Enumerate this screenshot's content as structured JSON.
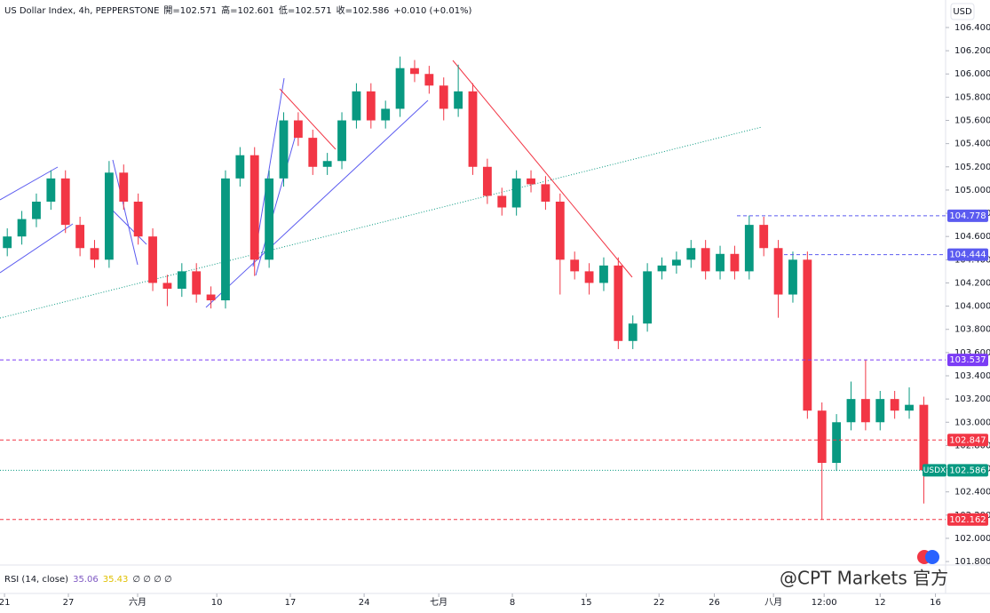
{
  "chart_data": {
    "type": "candlestick",
    "title": "US Dollar Index, 4h, PEPPERSTONE",
    "quote": [
      "開=102.571",
      "高=102.601",
      "低=102.571",
      "收=102.586",
      "+0.010 (+0.01%)"
    ],
    "currency": "USD",
    "up_color": "#089981",
    "down_color": "#f23645",
    "open": [
      104.5,
      104.6,
      104.75,
      104.9,
      105.1,
      104.7,
      104.5,
      104.4,
      105.15,
      104.9,
      104.6,
      104.2,
      104.15,
      104.3,
      104.1,
      104.05,
      105.1,
      105.3,
      104.4,
      105.1,
      105.6,
      105.45,
      105.2,
      105.25,
      105.6,
      105.85,
      105.6,
      105.7,
      106.05,
      106.0,
      105.9,
      105.7,
      105.85,
      105.2,
      104.95,
      104.85,
      105.1,
      105.05,
      104.9,
      104.4,
      104.3,
      104.2,
      104.35,
      103.7,
      103.85,
      104.3,
      104.35,
      104.4,
      104.5,
      104.3,
      104.45,
      104.3,
      104.7,
      104.5,
      104.1,
      104.4,
      103.1,
      102.65,
      103.0,
      103.2,
      103.0,
      103.2,
      103.1,
      103.15
    ],
    "high": [
      104.67,
      104.82,
      104.97,
      105.17,
      105.17,
      104.77,
      104.57,
      105.25,
      105.22,
      104.97,
      104.67,
      104.27,
      104.37,
      104.37,
      104.17,
      105.17,
      105.37,
      105.37,
      105.17,
      105.67,
      105.67,
      105.52,
      105.32,
      105.67,
      105.92,
      105.92,
      105.77,
      106.15,
      106.12,
      106.07,
      105.97,
      106.08,
      105.92,
      105.27,
      105.02,
      105.17,
      105.17,
      105.12,
      104.97,
      104.47,
      104.37,
      104.42,
      104.42,
      103.92,
      104.37,
      104.42,
      104.47,
      104.57,
      104.57,
      104.52,
      104.52,
      104.78,
      104.77,
      104.57,
      104.47,
      104.47,
      103.17,
      103.07,
      103.35,
      103.54,
      103.27,
      103.27,
      103.3,
      103.22
    ],
    "low": [
      104.43,
      104.53,
      104.68,
      104.83,
      104.63,
      104.43,
      104.33,
      104.33,
      104.83,
      104.53,
      104.13,
      104.0,
      104.08,
      104.03,
      103.98,
      103.98,
      105.03,
      104.26,
      104.33,
      105.03,
      105.38,
      105.13,
      105.13,
      105.18,
      105.53,
      105.53,
      105.53,
      105.63,
      105.93,
      105.83,
      105.6,
      105.63,
      105.13,
      104.88,
      104.78,
      104.78,
      104.98,
      104.83,
      104.1,
      104.23,
      104.1,
      104.13,
      103.63,
      103.63,
      103.78,
      104.23,
      104.28,
      104.33,
      104.23,
      104.23,
      104.23,
      104.23,
      104.43,
      103.9,
      104.03,
      103.03,
      102.16,
      102.58,
      102.93,
      102.93,
      102.93,
      103.03,
      103.03,
      102.3
    ],
    "close": [
      104.6,
      104.75,
      104.9,
      105.1,
      104.7,
      104.5,
      104.4,
      105.15,
      104.9,
      104.6,
      104.2,
      104.15,
      104.3,
      104.1,
      104.05,
      105.1,
      105.3,
      104.4,
      105.1,
      105.6,
      105.45,
      105.2,
      105.25,
      105.6,
      105.85,
      105.6,
      105.7,
      106.05,
      106.0,
      105.9,
      105.7,
      105.85,
      105.2,
      104.95,
      104.85,
      105.1,
      105.05,
      104.9,
      104.4,
      104.3,
      104.2,
      104.35,
      103.7,
      103.85,
      104.3,
      104.35,
      104.4,
      104.5,
      104.3,
      104.45,
      104.3,
      104.7,
      104.5,
      104.1,
      104.4,
      103.1,
      102.65,
      103.0,
      103.2,
      103.0,
      103.2,
      103.1,
      103.15,
      102.586
    ],
    "xlim": [
      -0.5,
      64.5
    ],
    "xticks": [
      {
        "value": -0.19,
        "label": "21"
      },
      {
        "value": 4.2,
        "label": "27"
      },
      {
        "value": 8.96,
        "label": "六月"
      },
      {
        "value": 14.4,
        "label": "10"
      },
      {
        "value": 19.46,
        "label": "17"
      },
      {
        "value": 24.53,
        "label": "24"
      },
      {
        "value": 29.66,
        "label": "七月"
      },
      {
        "value": 34.72,
        "label": "8"
      },
      {
        "value": 39.8,
        "label": "15"
      },
      {
        "value": 44.8,
        "label": "22"
      },
      {
        "value": 48.6,
        "label": "26"
      },
      {
        "value": 52.67,
        "label": "八月"
      },
      {
        "value": 56.15,
        "label": "12:00"
      },
      {
        "value": 60.0,
        "label": "12"
      },
      {
        "value": 63.8,
        "label": "16"
      }
    ],
    "ylim": [
      101.77,
      106.637
    ],
    "yticks": [
      {
        "value": 101.8,
        "label": "101.800"
      },
      {
        "value": 102.0,
        "label": "102.000"
      },
      {
        "value": 102.2,
        "label": "102.200"
      },
      {
        "value": 102.4,
        "label": "102.400"
      },
      {
        "value": 102.6,
        "label": "102.600"
      },
      {
        "value": 102.8,
        "label": "102.800"
      },
      {
        "value": 103.0,
        "label": "103.000"
      },
      {
        "value": 103.2,
        "label": "103.200"
      },
      {
        "value": 103.4,
        "label": "103.400"
      },
      {
        "value": 103.6,
        "label": "103.600"
      },
      {
        "value": 103.8,
        "label": "103.800"
      },
      {
        "value": 104.0,
        "label": "104.000"
      },
      {
        "value": 104.2,
        "label": "104.200"
      },
      {
        "value": 104.4,
        "label": "104.400"
      },
      {
        "value": 104.6,
        "label": "104.600"
      },
      {
        "value": 104.8,
        "label": "104.800"
      },
      {
        "value": 105.0,
        "label": "105.000"
      },
      {
        "value": 105.2,
        "label": "105.200"
      },
      {
        "value": 105.4,
        "label": "105.400"
      },
      {
        "value": 105.6,
        "label": "105.600"
      },
      {
        "value": 105.8,
        "label": "105.800"
      },
      {
        "value": 106.0,
        "label": "106.000"
      },
      {
        "value": 106.2,
        "label": "106.200"
      },
      {
        "value": 106.4,
        "label": "106.400"
      }
    ],
    "price_lines": [
      {
        "value": 104.778,
        "color": "#5b5bf0"
      },
      {
        "value": 104.444,
        "color": "#5b5bf0"
      },
      {
        "value": 103.537,
        "color": "#7b3cf5"
      },
      {
        "value": 102.847,
        "color": "#f23645"
      },
      {
        "value": 102.162,
        "color": "#f23645"
      }
    ],
    "last_price": {
      "value": 102.586,
      "label": "USDX",
      "color": "#089981"
    },
    "rsi": {
      "title": "RSI (14, close)",
      "values": [
        "35.06",
        "35.43"
      ],
      "colors": [
        "#7e57c2",
        "#e0c000"
      ],
      "empty": "∅ ∅ ∅ ∅"
    },
    "watermark": "@CPT Markets 官方"
  }
}
